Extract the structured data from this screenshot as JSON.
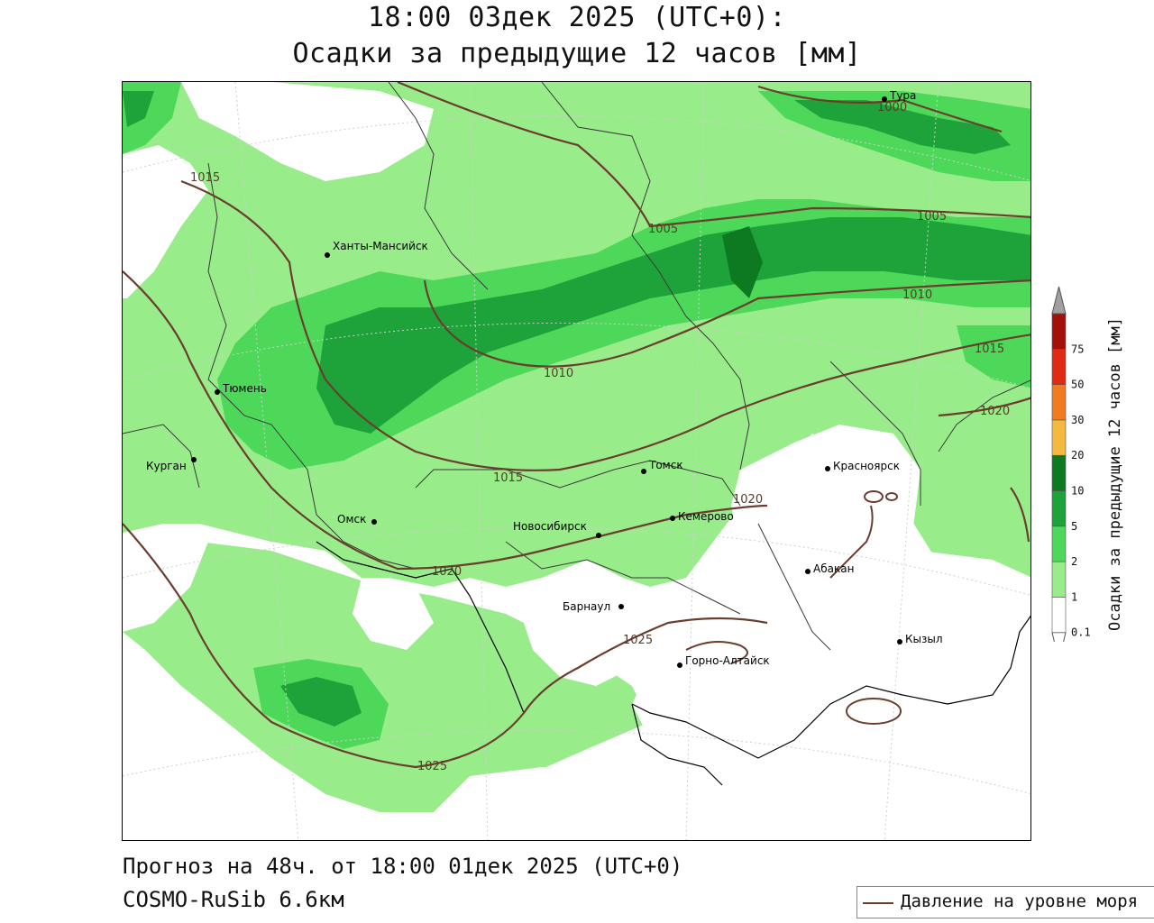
{
  "title": {
    "line1": "18:00 03дек 2025 (UTC+0):",
    "line2": "Осадки за предыдущие 12 часов [мм]"
  },
  "footer": {
    "forecast": "Прогноз на 48ч. от 18:00 01дек 2025 (UTC+0)",
    "model": "COSMO-RuSib 6.6км"
  },
  "legend": {
    "pressure_label": "Давление на уровне моря",
    "pressure_color": "#6b3d2e"
  },
  "colorbar": {
    "title": "Осадки за предыдущие 12 часов [мм]",
    "levels": [
      {
        "value": "0.1",
        "color": "#ffffff"
      },
      {
        "value": "1",
        "color": "#98ec8a"
      },
      {
        "value": "2",
        "color": "#4ed85a"
      },
      {
        "value": "5",
        "color": "#1ea23a"
      },
      {
        "value": "10",
        "color": "#0d7a22"
      },
      {
        "value": "20",
        "color": "#f6b93f"
      },
      {
        "value": "30",
        "color": "#f27a1f"
      },
      {
        "value": "50",
        "color": "#e02a14"
      },
      {
        "value": "75",
        "color": "#a50f0a"
      }
    ],
    "top_color": "#a0a0a0"
  },
  "cities": [
    {
      "name": "Тюмень"
    },
    {
      "name": "Ханты-Мансийск"
    },
    {
      "name": "Курган"
    },
    {
      "name": "Омск"
    },
    {
      "name": "Новосибирск"
    },
    {
      "name": "Томск"
    },
    {
      "name": "Кемерово"
    },
    {
      "name": "Барнаул"
    },
    {
      "name": "Горно-Алтайск"
    },
    {
      "name": "Абакан"
    },
    {
      "name": "Красноярск"
    },
    {
      "name": "Кызыл"
    },
    {
      "name": "Тура"
    }
  ],
  "isobar_labels": [
    "1000",
    "1005",
    "1005",
    "1010",
    "1010",
    "1015",
    "1015",
    "1015",
    "1020",
    "1020",
    "1020",
    "1025",
    "1025"
  ]
}
